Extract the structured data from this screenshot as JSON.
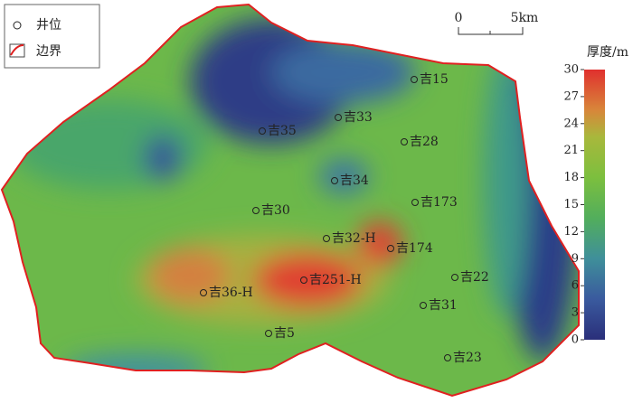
{
  "legend": {
    "items": [
      {
        "label": "井位"
      },
      {
        "label": "边界"
      }
    ]
  },
  "scale_bar": {
    "labels": [
      "0",
      "5km"
    ]
  },
  "colorbar": {
    "title": "厚度/m",
    "lim": [
      0,
      30
    ],
    "ticks": [
      0,
      3,
      6,
      9,
      12,
      15,
      18,
      21,
      24,
      27,
      30
    ]
  },
  "wells": [
    {
      "label": "吉15"
    },
    {
      "label": "吉33"
    },
    {
      "label": "吉35"
    },
    {
      "label": "吉28"
    },
    {
      "label": "吉34"
    },
    {
      "label": "吉30"
    },
    {
      "label": "吉173"
    },
    {
      "label": "吉32-H"
    },
    {
      "label": "吉174"
    },
    {
      "label": "吉251-H"
    },
    {
      "label": "吉22"
    },
    {
      "label": "吉36-H"
    },
    {
      "label": "吉31"
    },
    {
      "label": "吉5"
    },
    {
      "label": "吉23"
    }
  ]
}
